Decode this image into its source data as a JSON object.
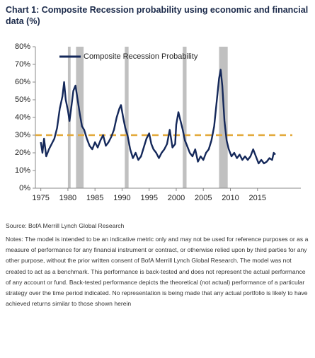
{
  "chart_data": {
    "type": "line",
    "title": "Chart 1: Composite Recession probability using economic and financial data (%)",
    "source": "Source: BofA Merrill Lynch Global Research",
    "notes": "Notes: The model is intended to be an indicative metric only and may not be used for reference purposes or as a measure of performance for any financial instrument or contract, or otherwise relied upon by third parties for any other purpose, without the prior written consent of BofA Merrill Lynch Global Research. The model was not created to act as a benchmark. This performance is back-tested and does not represent the actual performance of any account or fund. Back-tested performance depicts the theoretical (not actual) performance of a particular strategy over the time period indicated. No representation is being made that any actual portfolio is likely to have achieved returns similar to those shown herein",
    "x": [
      1975,
      1975.3,
      1975.6,
      1976,
      1976.5,
      1977,
      1977.5,
      1978,
      1978.5,
      1979,
      1979.3,
      1979.6,
      1980,
      1980.3,
      1980.6,
      1981,
      1981.4,
      1981.8,
      1982.2,
      1982.6,
      1983,
      1983.5,
      1984,
      1984.5,
      1985,
      1985.5,
      1986,
      1986.5,
      1987,
      1987.5,
      1988,
      1988.5,
      1989,
      1989.5,
      1989.8,
      1990.2,
      1990.6,
      1991,
      1991.5,
      1992,
      1992.5,
      1993,
      1993.5,
      1994,
      1994.5,
      1995,
      1995.4,
      1995.8,
      1996.3,
      1996.8,
      1997.3,
      1997.8,
      1998.3,
      1998.8,
      1999.3,
      1999.8,
      2000,
      2000.4,
      2000.8,
      2001.2,
      2001.6,
      2002,
      2002.5,
      2003,
      2003.5,
      2004,
      2004.5,
      2005,
      2005.5,
      2006,
      2006.5,
      2007,
      2007.5,
      2007.9,
      2008.2,
      2008.5,
      2008.9,
      2009.3,
      2009.7,
      2010.2,
      2010.7,
      2011.2,
      2011.7,
      2012.2,
      2012.7,
      2013.2,
      2013.7,
      2014.2,
      2014.7,
      2015.2,
      2015.7,
      2016.2,
      2016.7,
      2017.2,
      2017.7,
      2018,
      2018.3
    ],
    "series": [
      {
        "name": "Composite Recession Probability",
        "color": "#14285a",
        "values": [
          26,
          20,
          28,
          18,
          22,
          25,
          28,
          34,
          45,
          52,
          60,
          50,
          44,
          38,
          45,
          55,
          58,
          50,
          42,
          35,
          33,
          28,
          24,
          22,
          26,
          23,
          27,
          30,
          24,
          26,
          29,
          33,
          40,
          45,
          47,
          40,
          34,
          30,
          22,
          17,
          20,
          16,
          18,
          23,
          28,
          31,
          25,
          22,
          20,
          17,
          20,
          22,
          25,
          33,
          23,
          25,
          36,
          43,
          38,
          33,
          27,
          24,
          20,
          18,
          22,
          15,
          18,
          16,
          20,
          22,
          27,
          35,
          50,
          62,
          67,
          58,
          38,
          27,
          22,
          18,
          20,
          17,
          19,
          16,
          18,
          16,
          18,
          22,
          18,
          14,
          16,
          14,
          15,
          17,
          16,
          20,
          19
        ]
      }
    ],
    "recessions": [
      [
        1980.0,
        1980.5
      ],
      [
        1981.5,
        1982.9
      ],
      [
        1990.5,
        1991.2
      ],
      [
        2001.2,
        2001.9
      ],
      [
        2007.9,
        2009.5
      ]
    ],
    "recession_color": "#c0c0c0",
    "threshold": 30,
    "threshold_color": "#e3a93b",
    "xlim": [
      1974,
      2023
    ],
    "xticks": [
      1975,
      1980,
      1985,
      1990,
      1995,
      2000,
      2005,
      2010,
      2015
    ],
    "ylim": [
      0,
      80
    ],
    "yticks": [
      {
        "value": 0,
        "label": "0%"
      },
      {
        "value": 10,
        "label": "10%"
      },
      {
        "value": 20,
        "label": "20%"
      },
      {
        "value": 30,
        "label": "30%"
      },
      {
        "value": 40,
        "label": "40%"
      },
      {
        "value": 50,
        "label": "50%"
      },
      {
        "value": 60,
        "label": "60%"
      },
      {
        "value": 70,
        "label": "70%"
      },
      {
        "value": 80,
        "label": "80%"
      }
    ],
    "legend": "upper left"
  }
}
